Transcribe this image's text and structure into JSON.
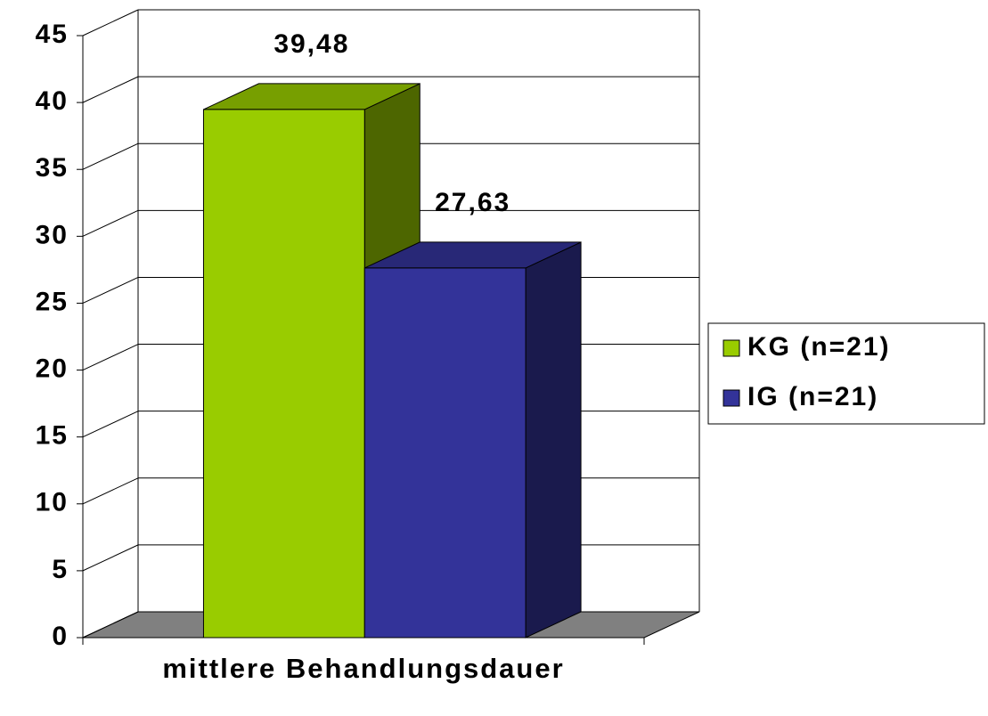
{
  "chart_data": {
    "type": "bar3d",
    "categories": [
      "mittlere Behandlungsdauer"
    ],
    "series": [
      {
        "name": "KG (n=21)",
        "color": "#99cc00",
        "values": [
          39.48
        ],
        "value_labels": [
          "39,48"
        ]
      },
      {
        "name": "IG (n=21)",
        "color": "#333399",
        "values": [
          27.63
        ],
        "value_labels": [
          "27,63"
        ]
      }
    ],
    "ylim": [
      0,
      45
    ],
    "yticks": [
      0,
      5,
      10,
      15,
      20,
      25,
      30,
      35,
      40,
      45
    ],
    "grid": true,
    "legend": "right"
  }
}
